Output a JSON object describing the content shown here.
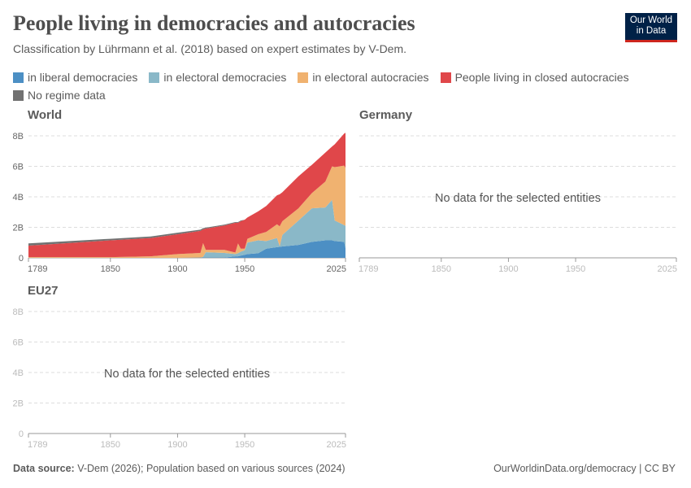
{
  "header": {
    "title": "People living in democracies and autocracies",
    "subtitle": "Classification by Lührmann et al. (2018) based on expert estimates by V-Dem.",
    "logo_text": "Our World in Data"
  },
  "legend": [
    {
      "label": "in liberal democracies",
      "color": "#4c8fc4"
    },
    {
      "label": "in electoral democracies",
      "color": "#8ab8c8"
    },
    {
      "label": "in electoral autocracies",
      "color": "#f0b270"
    },
    {
      "label": "People living in closed autocracies",
      "color": "#e0474a"
    },
    {
      "label": "No regime data",
      "color": "#717171"
    }
  ],
  "footer": {
    "source_label": "Data source:",
    "source_text": "V-Dem (2026); Population based on various sources (2024)",
    "right": "OurWorldinData.org/democracy | CC BY"
  },
  "chart_data": [
    {
      "type": "area",
      "stacked": true,
      "title": "World",
      "ylim": [
        0,
        8000000000
      ],
      "yticks": [
        "0",
        "2B",
        "4B",
        "6B",
        "8B"
      ],
      "xticks": [
        "1789",
        "1850",
        "1900",
        "1950",
        "2025"
      ],
      "grid": true,
      "x": [
        1789,
        1850,
        1880,
        1900,
        1917,
        1919,
        1921,
        1935,
        1943,
        1945,
        1947,
        1950,
        1952,
        1960,
        1966,
        1974,
        1976,
        1978,
        1990,
        2000,
        2010,
        2015,
        2017,
        2024,
        2025
      ],
      "series": [
        {
          "name": "in liberal democracies",
          "values": [
            0,
            0,
            0,
            0,
            0.02,
            0.02,
            0.02,
            0.02,
            0.1,
            0.1,
            0.15,
            0.2,
            0.25,
            0.3,
            0.6,
            0.7,
            0.72,
            0.75,
            0.85,
            1.05,
            1.15,
            1.15,
            1.1,
            1.05,
            0.65
          ]
        },
        {
          "name": "in electoral democracies",
          "values": [
            0,
            0,
            0,
            0,
            0,
            0.05,
            0.35,
            0.3,
            0.15,
            0.2,
            0.25,
            0.3,
            0.75,
            0.85,
            0.5,
            0.6,
            0.05,
            0.75,
            1.6,
            2.2,
            2.15,
            2.65,
            1.35,
            1.1,
            1.45
          ]
        },
        {
          "name": "in electoral autocracies",
          "values": [
            0.05,
            0.05,
            0.1,
            0.25,
            0.3,
            0.9,
            0.15,
            0.2,
            0.1,
            0.65,
            0.2,
            0.1,
            0.25,
            0.4,
            0.6,
            0.9,
            1.3,
            0.9,
            0.8,
            1.0,
            1.7,
            2.2,
            3.5,
            3.9,
            3.8
          ]
        },
        {
          "name": "People living in closed autocracies",
          "values": [
            0.75,
            1.1,
            1.2,
            1.3,
            1.45,
            0.9,
            1.4,
            1.6,
            1.95,
            1.35,
            1.8,
            1.9,
            1.4,
            1.5,
            1.7,
            1.9,
            2.1,
            1.9,
            2.1,
            1.85,
            1.9,
            1.3,
            1.5,
            2.1,
            2.3
          ]
        },
        {
          "name": "No regime data",
          "values": [
            0.15,
            0.1,
            0.1,
            0.1,
            0.08,
            0.08,
            0.06,
            0.06,
            0.05,
            0.05,
            0.05,
            0,
            0,
            0,
            0,
            0,
            0,
            0,
            0,
            0,
            0,
            0,
            0,
            0,
            0
          ]
        }
      ],
      "unit_note": "values in billions"
    },
    {
      "type": "area",
      "title": "Germany",
      "message": "No data for the selected entities",
      "xticks": [
        "1789",
        "1850",
        "1900",
        "1950",
        "2025"
      ]
    },
    {
      "type": "area",
      "title": "EU27",
      "message": "No data for the selected entities",
      "yticks": [
        "0",
        "2B",
        "4B",
        "6B",
        "8B"
      ],
      "xticks": [
        "1789",
        "1850",
        "1900",
        "1950",
        "2025"
      ]
    }
  ]
}
